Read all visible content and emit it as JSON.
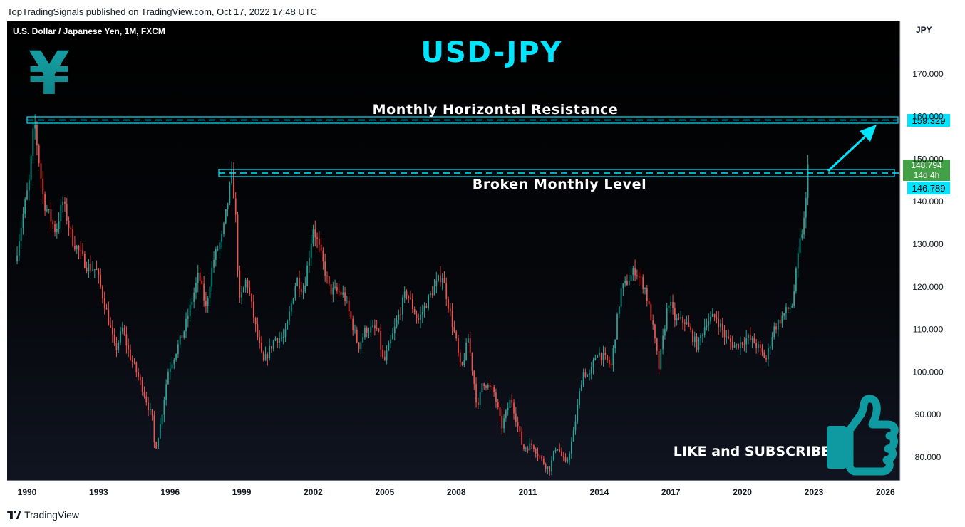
{
  "header": {
    "publisher": "TopTradingSignals published on TradingView.com, Oct 17, 2022 17:48 UTC"
  },
  "footer": {
    "brand": "TradingView"
  },
  "chart": {
    "symbol_label": "U.S. Dollar / Japanese Yen, 1M, FXCM",
    "title": "USD-JPY",
    "axis_unit": "JPY",
    "currency_symbol": "¥",
    "annotations": {
      "resistance": "Monthly Horizontal Resistance",
      "broken": "Broken Monthly Level",
      "cta": "LIKE and SUBSCRIBE"
    },
    "price_tags": {
      "resistance": "159.329",
      "current": "148.794",
      "countdown": "14d 4h",
      "broken": "146.789"
    },
    "colors": {
      "up": "#26a69a",
      "down": "#ef5350",
      "accent": "#00e5ff",
      "tag_green": "#43a047",
      "thumb": "#0e9aa0"
    },
    "icons": [
      "yen-icon",
      "thumbs-up-icon",
      "arrow-icon",
      "tradingview-logo-icon"
    ]
  },
  "chart_data": {
    "type": "candlestick",
    "title": "USD-JPY",
    "ylabel": "JPY",
    "ylim": [
      75,
      176
    ],
    "xlim": [
      1989.5,
      2024.8
    ],
    "x_ticks": [
      "1990",
      "1993",
      "1996",
      "1999",
      "2002",
      "2005",
      "2008",
      "2011",
      "2014",
      "2017",
      "2020",
      "2023",
      "2026"
    ],
    "y_ticks": [
      "80.000",
      "90.000",
      "100.000",
      "110.000",
      "120.000",
      "130.000",
      "140.000",
      "150.000",
      "160.000",
      "170.000"
    ],
    "grid": false,
    "levels": [
      {
        "name": "Monthly Horizontal Resistance",
        "value": 159.329,
        "from": 1990.1,
        "to": 2024.7
      },
      {
        "name": "Broken Monthly Level",
        "value": 146.789,
        "from": 1997.8,
        "to": 2024.7
      }
    ],
    "last_close": 148.794,
    "anchors": [
      [
        1989.5,
        126
      ],
      [
        1989.8,
        136
      ],
      [
        1990.1,
        145
      ],
      [
        1990.3,
        159.3
      ],
      [
        1990.45,
        152
      ],
      [
        1990.7,
        140
      ],
      [
        1991.2,
        133
      ],
      [
        1991.5,
        140
      ],
      [
        1991.9,
        131
      ],
      [
        1992.5,
        125
      ],
      [
        1992.9,
        124
      ],
      [
        1993.3,
        115
      ],
      [
        1993.7,
        105
      ],
      [
        1994.0,
        110
      ],
      [
        1994.3,
        104
      ],
      [
        1994.8,
        97
      ],
      [
        1995.3,
        88
      ],
      [
        1995.35,
        81
      ],
      [
        1995.6,
        88
      ],
      [
        1995.9,
        100
      ],
      [
        1996.6,
        110
      ],
      [
        1997.2,
        123
      ],
      [
        1997.5,
        115
      ],
      [
        1997.8,
        126
      ],
      [
        1998.2,
        132
      ],
      [
        1998.6,
        146.8
      ],
      [
        1998.75,
        136
      ],
      [
        1998.9,
        116
      ],
      [
        1999.2,
        122
      ],
      [
        1999.6,
        110
      ],
      [
        1999.9,
        102
      ],
      [
        2000.4,
        108
      ],
      [
        2000.8,
        108
      ],
      [
        2001.3,
        122
      ],
      [
        2001.6,
        119
      ],
      [
        2002.0,
        134
      ],
      [
        2002.3,
        128
      ],
      [
        2002.7,
        119
      ],
      [
        2003.0,
        119
      ],
      [
        2003.3,
        118
      ],
      [
        2003.9,
        106
      ],
      [
        2004.2,
        110
      ],
      [
        2004.7,
        110
      ],
      [
        2004.95,
        102
      ],
      [
        2005.3,
        108
      ],
      [
        2005.9,
        119
      ],
      [
        2006.4,
        112
      ],
      [
        2006.9,
        118
      ],
      [
        2007.4,
        123
      ],
      [
        2007.7,
        115
      ],
      [
        2008.0,
        107
      ],
      [
        2008.2,
        100
      ],
      [
        2008.5,
        108
      ],
      [
        2008.9,
        91
      ],
      [
        2009.1,
        98
      ],
      [
        2009.6,
        95
      ],
      [
        2009.9,
        87
      ],
      [
        2010.3,
        94
      ],
      [
        2010.8,
        82
      ],
      [
        2011.2,
        83
      ],
      [
        2011.5,
        80
      ],
      [
        2011.9,
        77
      ],
      [
        2012.2,
        83
      ],
      [
        2012.6,
        78
      ],
      [
        2012.9,
        85
      ],
      [
        2013.3,
        100
      ],
      [
        2013.6,
        99
      ],
      [
        2013.9,
        105
      ],
      [
        2014.5,
        101.5
      ],
      [
        2014.9,
        119
      ],
      [
        2015.5,
        124
      ],
      [
        2015.9,
        120
      ],
      [
        2016.2,
        112
      ],
      [
        2016.5,
        101
      ],
      [
        2016.9,
        117
      ],
      [
        2017.2,
        112
      ],
      [
        2017.6,
        112
      ],
      [
        2018.1,
        106
      ],
      [
        2018.5,
        112
      ],
      [
        2018.9,
        113
      ],
      [
        2019.3,
        108
      ],
      [
        2019.7,
        106
      ],
      [
        2020.2,
        108
      ],
      [
        2020.5,
        107
      ],
      [
        2021.0,
        103
      ],
      [
        2021.3,
        110
      ],
      [
        2021.8,
        114
      ],
      [
        2022.1,
        116
      ],
      [
        2022.4,
        130
      ],
      [
        2022.6,
        136
      ],
      [
        2022.75,
        145
      ],
      [
        2022.82,
        148.79
      ]
    ]
  }
}
